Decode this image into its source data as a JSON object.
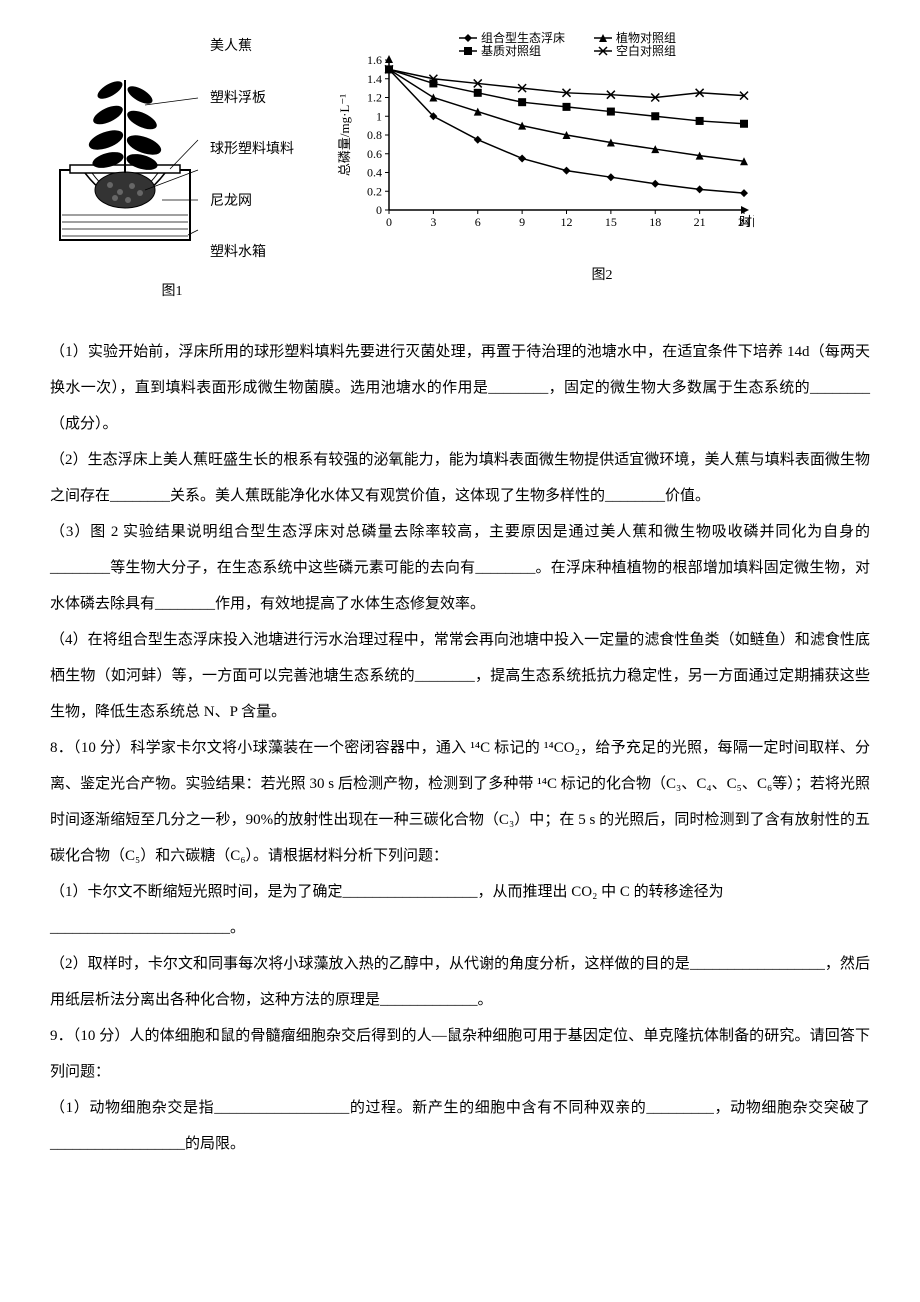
{
  "figure1": {
    "labels": [
      "美人蕉",
      "塑料浮板",
      "球形塑料填料",
      "尼龙网",
      "塑料水箱"
    ],
    "caption": "图1",
    "diagram": {
      "box_stroke": "#000000",
      "fill_white": "#ffffff",
      "water_fill": "#ffffff",
      "root_fill": "#2a2a2a",
      "plant_fill": "#000000"
    }
  },
  "figure2": {
    "caption": "图2",
    "chart": {
      "type": "line",
      "xlabel": "时间/d",
      "ylabel": "总磷量/mg·L⁻¹",
      "xlim": [
        0,
        24
      ],
      "ylim": [
        0,
        1.6
      ],
      "xticks": [
        0,
        3,
        6,
        9,
        12,
        15,
        18,
        21,
        24
      ],
      "yticks": [
        0,
        0.2,
        0.4,
        0.6,
        0.8,
        1.0,
        1.2,
        1.4,
        1.6
      ],
      "series": [
        {
          "name": "组合型生态浮床",
          "marker": "diamond",
          "color": "#000000",
          "x": [
            0,
            3,
            6,
            9,
            12,
            15,
            18,
            21,
            24
          ],
          "y": [
            1.5,
            1.0,
            0.75,
            0.55,
            0.42,
            0.35,
            0.28,
            0.22,
            0.18
          ]
        },
        {
          "name": "植物对照组",
          "marker": "triangle",
          "color": "#000000",
          "x": [
            0,
            3,
            6,
            9,
            12,
            15,
            18,
            21,
            24
          ],
          "y": [
            1.5,
            1.2,
            1.05,
            0.9,
            0.8,
            0.72,
            0.65,
            0.58,
            0.52
          ]
        },
        {
          "name": "基质对照组",
          "marker": "square",
          "color": "#000000",
          "x": [
            0,
            3,
            6,
            9,
            12,
            15,
            18,
            21,
            24
          ],
          "y": [
            1.5,
            1.35,
            1.25,
            1.15,
            1.1,
            1.05,
            1.0,
            0.95,
            0.92
          ]
        },
        {
          "name": "空白对照组",
          "marker": "x",
          "color": "#000000",
          "x": [
            0,
            3,
            6,
            9,
            12,
            15,
            18,
            21,
            24
          ],
          "y": [
            1.5,
            1.4,
            1.35,
            1.3,
            1.25,
            1.23,
            1.2,
            1.25,
            1.22
          ]
        }
      ],
      "background_color": "#ffffff",
      "axis_color": "#000000",
      "label_fontsize": 13
    }
  },
  "questions": {
    "q1": "（1）实验开始前，浮床所用的球形塑料填料先要进行灭菌处理，再置于待治理的池塘水中，在适宜条件下培养 14d（每两天换水一次），直到填料表面形成微生物菌膜。选用池塘水的作用是________，固定的微生物大多数属于生态系统的________（成分）。",
    "q2": "（2）生态浮床上美人蕉旺盛生长的根系有较强的泌氧能力，能为填料表面微生物提供适宜微环境，美人蕉与填料表面微生物之间存在________关系。美人蕉既能净化水体又有观赏价值，这体现了生物多样性的________价值。",
    "q3": "（3）图 2 实验结果说明组合型生态浮床对总磷量去除率较高，主要原因是通过美人蕉和微生物吸收磷并同化为自身的________等生物大分子，在生态系统中这些磷元素可能的去向有________。在浮床种植植物的根部增加填料固定微生物，对水体磷去除具有________作用，有效地提高了水体生态修复效率。",
    "q4": "（4）在将组合型生态浮床投入池塘进行污水治理过程中，常常会再向池塘中投入一定量的滤食性鱼类（如鲢鱼）和滤食性底栖生物（如河蚌）等，一方面可以完善池塘生态系统的________，提高生态系统抵抗力稳定性，另一方面通过定期捕获这些生物，降低生态系统总 N、P 含量。",
    "q8_intro": "8．（10 分）科学家卡尔文将小球藻装在一个密闭容器中，通入 ¹⁴C 标记的 ¹⁴CO₂，给予充足的光照，每隔一定时间取样、分离、鉴定光合产物。实验结果：若光照 30 s 后检测产物，检测到了多种带 ¹⁴C 标记的化合物（C₃、C₄、C₅、C₆等）；若将光照时间逐渐缩短至几分之一秒，90%的放射性出现在一种三碳化合物（C₃）中；在 5 s 的光照后，同时检测到了含有放射性的五碳化合物（C₅）和六碳糖（C₆）。请根据材料分析下列问题：",
    "q8_1": "（1）卡尔文不断缩短光照时间，是为了确定__________________，从而推理出 CO₂ 中 C 的转移途径为",
    "q8_1_end": "________________________。",
    "q8_2": "（2）取样时，卡尔文和同事每次将小球藻放入热的乙醇中，从代谢的角度分析，这样做的目的是__________________，然后用纸层析法分离出各种化合物，这种方法的原理是_____________。",
    "q9_intro": "9．（10 分）人的体细胞和鼠的骨髓瘤细胞杂交后得到的人—鼠杂种细胞可用于基因定位、单克隆抗体制备的研究。请回答下列问题：",
    "q9_1": "（1）动物细胞杂交是指__________________的过程。新产生的细胞中含有不同种双亲的_________，动物细胞杂交突破了__________________的局限。"
  }
}
